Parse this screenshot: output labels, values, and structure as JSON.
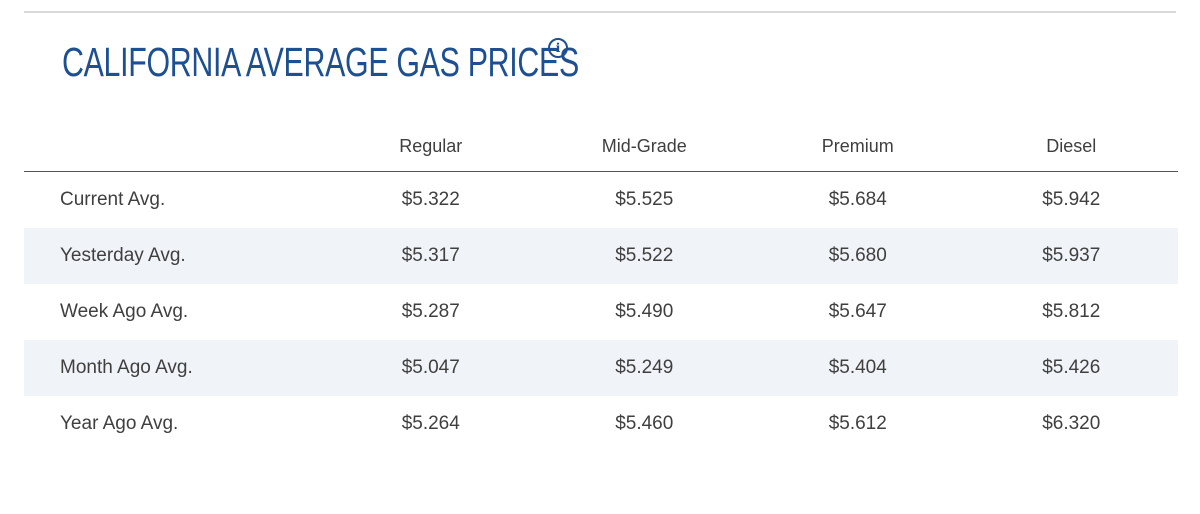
{
  "header": {
    "title": "CALIFORNIA AVERAGE GAS PRICES",
    "info_icon": "info-icon",
    "colors": {
      "title": "#1d4f91",
      "row_alt_bg": "#f0f4f9",
      "text": "#3f3f3f"
    }
  },
  "table": {
    "columns": [
      "",
      "Regular",
      "Mid-Grade",
      "Premium",
      "Diesel"
    ],
    "rows": [
      {
        "label": "Current Avg.",
        "values": [
          "$5.322",
          "$5.525",
          "$5.684",
          "$5.942"
        ]
      },
      {
        "label": "Yesterday Avg.",
        "values": [
          "$5.317",
          "$5.522",
          "$5.680",
          "$5.937"
        ]
      },
      {
        "label": "Week Ago Avg.",
        "values": [
          "$5.287",
          "$5.490",
          "$5.647",
          "$5.812"
        ]
      },
      {
        "label": "Month Ago Avg.",
        "values": [
          "$5.047",
          "$5.249",
          "$5.404",
          "$5.426"
        ]
      },
      {
        "label": "Year Ago Avg.",
        "values": [
          "$5.264",
          "$5.460",
          "$5.612",
          "$6.320"
        ]
      }
    ]
  }
}
